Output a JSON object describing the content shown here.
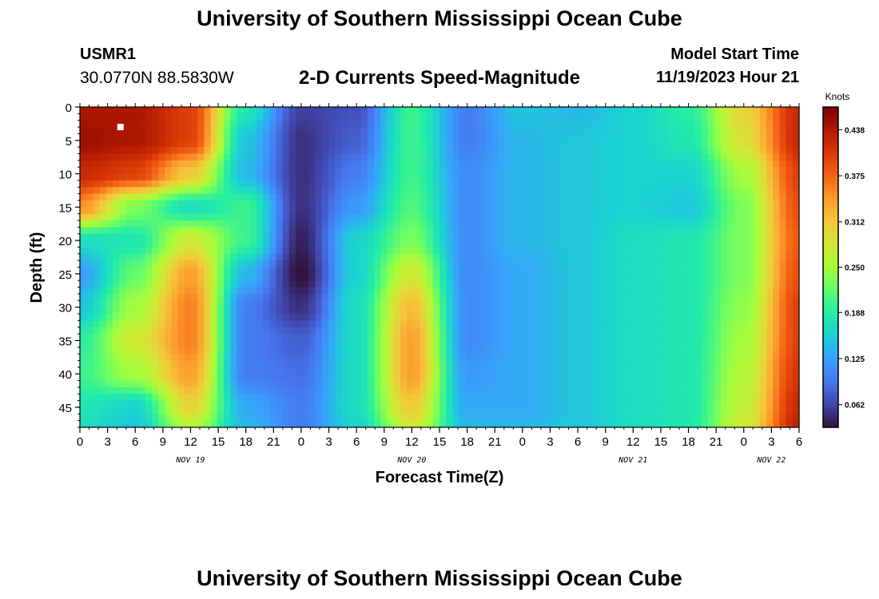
{
  "header": {
    "title": "University of Southern Mississippi Ocean Cube",
    "station_id": "USMR1",
    "station_location": "30.0770N  88.5830W",
    "plot_name": "2-D Currents Speed-Magnitude",
    "model_start_label": "Model Start Time",
    "model_start_value": "11/19/2023 Hour 21"
  },
  "footer": {
    "title": "University of Southern Mississippi Ocean Cube"
  },
  "chart_data": {
    "type": "heatmap",
    "xlabel": "Forecast Time(Z)",
    "ylabel": "Depth (ft)",
    "x_range_hours": [
      0,
      78
    ],
    "y_range": [
      0,
      48
    ],
    "y_ticks": [
      0,
      5,
      10,
      15,
      20,
      25,
      30,
      35,
      40,
      45
    ],
    "x_ticks": [
      {
        "h": 0,
        "label": "0"
      },
      {
        "h": 3,
        "label": "3"
      },
      {
        "h": 6,
        "label": "6"
      },
      {
        "h": 9,
        "label": "9"
      },
      {
        "h": 12,
        "label": "12"
      },
      {
        "h": 15,
        "label": "15"
      },
      {
        "h": 18,
        "label": "18"
      },
      {
        "h": 21,
        "label": "21"
      },
      {
        "h": 24,
        "label": "0"
      },
      {
        "h": 27,
        "label": "3"
      },
      {
        "h": 30,
        "label": "6"
      },
      {
        "h": 33,
        "label": "9"
      },
      {
        "h": 36,
        "label": "12"
      },
      {
        "h": 39,
        "label": "15"
      },
      {
        "h": 42,
        "label": "18"
      },
      {
        "h": 45,
        "label": "21"
      },
      {
        "h": 48,
        "label": "0"
      },
      {
        "h": 51,
        "label": "3"
      },
      {
        "h": 54,
        "label": "6"
      },
      {
        "h": 57,
        "label": "9"
      },
      {
        "h": 60,
        "label": "12"
      },
      {
        "h": 63,
        "label": "15"
      },
      {
        "h": 66,
        "label": "18"
      },
      {
        "h": 69,
        "label": "21"
      },
      {
        "h": 72,
        "label": "0"
      },
      {
        "h": 75,
        "label": "3"
      },
      {
        "h": 78,
        "label": "6"
      }
    ],
    "date_labels": [
      {
        "h": 12,
        "label": "NOV 19"
      },
      {
        "h": 36,
        "label": "NOV 20"
      },
      {
        "h": 60,
        "label": "NOV 21"
      },
      {
        "h": 75,
        "label": "NOV 22"
      }
    ],
    "colorbar": {
      "unit": "Knots",
      "min": 0.031,
      "max": 0.469,
      "ticks": [
        0.062,
        0.125,
        0.188,
        0.25,
        0.312,
        0.375,
        0.438
      ],
      "tick_labels": [
        "0.062",
        "0.125",
        "0.188",
        "0.250",
        "0.312",
        "0.375",
        "0.438"
      ],
      "colors": [
        "#30123b",
        "#4145ab",
        "#4675ed",
        "#39a2fc",
        "#1bcfd4",
        "#24eca6",
        "#61fc6c",
        "#a4fc3b",
        "#d1e834",
        "#f3c63a",
        "#fe9b2d",
        "#f36315",
        "#d93806",
        "#b11901",
        "#7a0402"
      ]
    },
    "grid": {
      "x_hours": [
        0,
        6,
        12,
        18,
        24,
        30,
        36,
        42,
        48,
        54,
        60,
        66,
        72,
        78
      ],
      "depths": [
        0,
        5,
        10,
        15,
        20,
        25,
        30,
        35,
        40,
        45,
        48
      ],
      "values_knots": [
        [
          0.44,
          0.44,
          0.4,
          0.18,
          0.06,
          0.07,
          0.2,
          0.1,
          0.15,
          0.14,
          0.16,
          0.19,
          0.3,
          0.42
        ],
        [
          0.45,
          0.44,
          0.4,
          0.15,
          0.05,
          0.08,
          0.2,
          0.1,
          0.14,
          0.15,
          0.16,
          0.18,
          0.29,
          0.42
        ],
        [
          0.42,
          0.4,
          0.31,
          0.14,
          0.05,
          0.1,
          0.2,
          0.11,
          0.14,
          0.15,
          0.16,
          0.16,
          0.25,
          0.4
        ],
        [
          0.35,
          0.23,
          0.17,
          0.2,
          0.05,
          0.12,
          0.21,
          0.11,
          0.14,
          0.15,
          0.16,
          0.15,
          0.23,
          0.39
        ],
        [
          0.17,
          0.18,
          0.28,
          0.2,
          0.04,
          0.16,
          0.23,
          0.11,
          0.14,
          0.15,
          0.17,
          0.18,
          0.23,
          0.38
        ],
        [
          0.12,
          0.22,
          0.34,
          0.14,
          0.03,
          0.16,
          0.28,
          0.11,
          0.13,
          0.15,
          0.17,
          0.18,
          0.23,
          0.39
        ],
        [
          0.15,
          0.25,
          0.36,
          0.1,
          0.05,
          0.17,
          0.32,
          0.11,
          0.13,
          0.15,
          0.17,
          0.18,
          0.24,
          0.4
        ],
        [
          0.19,
          0.28,
          0.36,
          0.1,
          0.08,
          0.17,
          0.34,
          0.11,
          0.13,
          0.15,
          0.17,
          0.18,
          0.25,
          0.4
        ],
        [
          0.2,
          0.25,
          0.34,
          0.1,
          0.09,
          0.17,
          0.34,
          0.12,
          0.13,
          0.15,
          0.17,
          0.18,
          0.26,
          0.41
        ],
        [
          0.18,
          0.16,
          0.3,
          0.13,
          0.1,
          0.17,
          0.31,
          0.13,
          0.13,
          0.15,
          0.17,
          0.18,
          0.27,
          0.42
        ],
        [
          0.17,
          0.15,
          0.26,
          0.14,
          0.1,
          0.16,
          0.28,
          0.14,
          0.14,
          0.15,
          0.17,
          0.18,
          0.28,
          0.43
        ]
      ]
    },
    "marker": {
      "h": 4.4,
      "depth": 3
    }
  }
}
